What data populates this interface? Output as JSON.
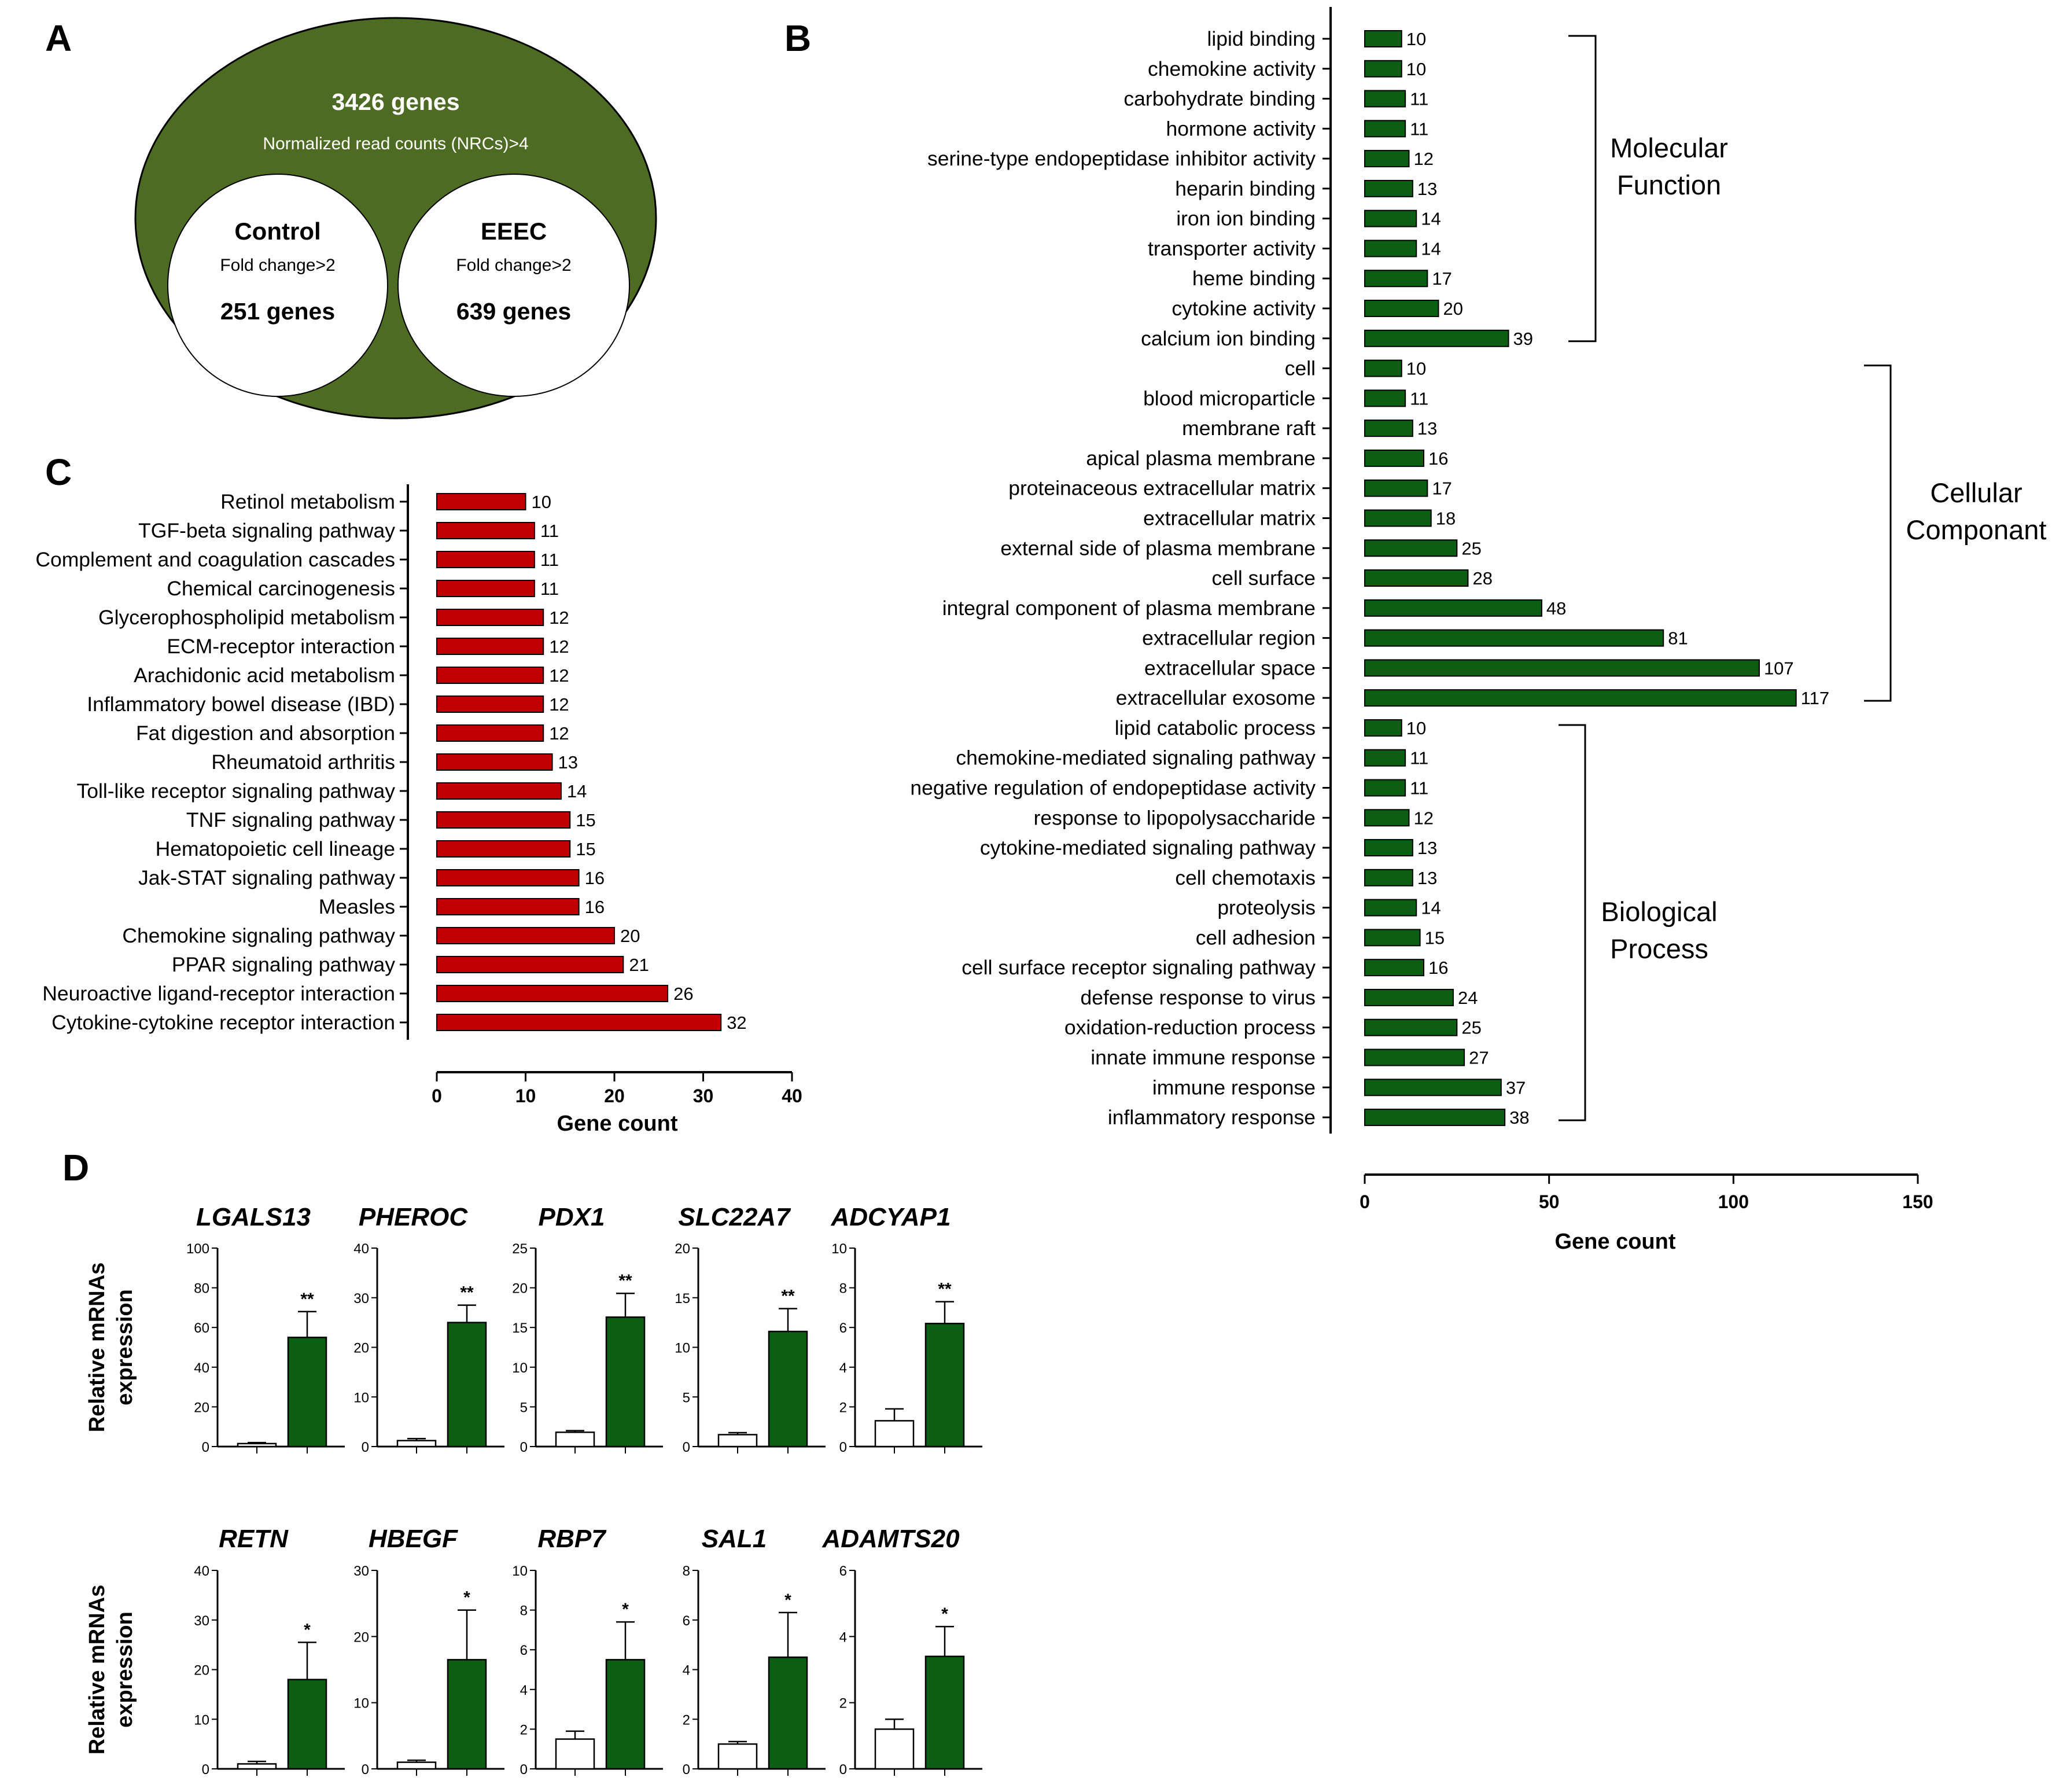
{
  "panel_letters": {
    "a": "A",
    "b": "B",
    "c": "C",
    "d": "D"
  },
  "venn": {
    "outer_title": "3426 genes",
    "outer_subtitle": "Normalized read counts (NRCs)>4",
    "left": {
      "title": "Control",
      "subtitle": "Fold change>2",
      "count": "251 genes"
    },
    "right": {
      "title": "EEEC",
      "subtitle": "Fold change>2",
      "count": "639 genes"
    },
    "outer_color": "#4d6b22"
  },
  "chart_data": [
    {
      "panel": "B",
      "type": "bar",
      "orientation": "horizontal",
      "xlabel": "Gene count",
      "xlim": [
        0,
        150
      ],
      "xticks": [
        0,
        50,
        100,
        150
      ],
      "color": "#0b5e12",
      "groups": [
        {
          "name": "Molecular Function",
          "label_lines": [
            "Molecular",
            "Function"
          ],
          "categories": [
            "lipid binding",
            "chemokine activity",
            "carbohydrate binding",
            "hormone activity",
            "serine-type endopeptidase inhibitor activity",
            "heparin binding",
            "iron ion binding",
            "transporter activity",
            "heme binding",
            "cytokine activity",
            "calcium ion binding"
          ],
          "values": [
            10,
            10,
            11,
            11,
            12,
            13,
            14,
            14,
            17,
            20,
            39
          ]
        },
        {
          "name": "Cellular Componant",
          "label_lines": [
            "Cellular",
            "Componant"
          ],
          "categories": [
            "cell",
            "blood microparticle",
            "membrane raft",
            "apical plasma membrane",
            "proteinaceous extracellular matrix",
            "extracellular matrix",
            "external side of plasma membrane",
            "cell surface",
            "integral component of plasma membrane",
            "extracellular region",
            "extracellular space",
            "extracellular exosome"
          ],
          "values": [
            10,
            11,
            13,
            16,
            17,
            18,
            25,
            28,
            48,
            81,
            107,
            117
          ]
        },
        {
          "name": "Biological Process",
          "label_lines": [
            "Biological",
            "Process"
          ],
          "categories": [
            "lipid catabolic process",
            "chemokine-mediated signaling pathway",
            "negative regulation of endopeptidase activity",
            "response to lipopolysaccharide",
            "cytokine-mediated signaling pathway",
            "cell chemotaxis",
            "proteolysis",
            "cell adhesion",
            "cell surface receptor signaling pathway",
            "defense response to virus",
            "oxidation-reduction process",
            "innate immune response",
            "immune response",
            "inflammatory response"
          ],
          "values": [
            10,
            11,
            11,
            12,
            13,
            13,
            14,
            15,
            16,
            24,
            25,
            27,
            37,
            38
          ]
        }
      ]
    },
    {
      "panel": "C",
      "type": "bar",
      "orientation": "horizontal",
      "xlabel": "Gene count",
      "xlim": [
        0,
        40
      ],
      "xticks": [
        0,
        10,
        20,
        30,
        40
      ],
      "color": "#c00000",
      "categories": [
        "Retinol metabolism",
        "TGF-beta signaling pathway",
        "Complement and coagulation cascades",
        "Chemical carcinogenesis",
        "Glycerophospholipid metabolism",
        "ECM-receptor interaction",
        "Arachidonic acid metabolism",
        "Inflammatory bowel disease (IBD)",
        "Fat digestion and absorption",
        "Rheumatoid arthritis",
        "Toll-like receptor signaling pathway",
        "TNF signaling pathway",
        "Hematopoietic cell lineage",
        "Jak-STAT signaling pathway",
        "Measles",
        "Chemokine signaling pathway",
        "PPAR signaling pathway",
        "Neuroactive ligand-receptor interaction",
        "Cytokine-cytokine receptor interaction"
      ],
      "values": [
        10,
        11,
        11,
        11,
        12,
        12,
        12,
        12,
        12,
        13,
        14,
        15,
        15,
        16,
        16,
        20,
        21,
        26,
        32
      ]
    },
    {
      "panel": "D",
      "type": "bar",
      "ylabel": "Relative mRNAs expression",
      "groups_order": [
        "white",
        "green"
      ],
      "colors": {
        "white": "#ffffff",
        "green": "#0b5e12"
      },
      "rows": [
        [
          {
            "gene": "LGALS13",
            "ylim": [
              0,
              100
            ],
            "yticks": [
              0,
              20,
              40,
              60,
              80,
              100
            ],
            "values": [
              1.5,
              55
            ],
            "errors": [
              0.5,
              13
            ],
            "sig": "**"
          },
          {
            "gene": "PHEROC",
            "ylim": [
              0,
              40
            ],
            "yticks": [
              0,
              10,
              20,
              30,
              40
            ],
            "values": [
              1.2,
              25
            ],
            "errors": [
              0.4,
              3.5
            ],
            "sig": "**"
          },
          {
            "gene": "PDX1",
            "ylim": [
              0,
              25
            ],
            "yticks": [
              0,
              5,
              10,
              15,
              20,
              25
            ],
            "values": [
              1.8,
              16.3
            ],
            "errors": [
              0.2,
              3
            ],
            "sig": "**"
          },
          {
            "gene": "SLC22A7",
            "ylim": [
              0,
              20
            ],
            "yticks": [
              0,
              5,
              10,
              15,
              20
            ],
            "values": [
              1.2,
              11.6
            ],
            "errors": [
              0.2,
              2.3
            ],
            "sig": "**"
          },
          {
            "gene": "ADCYAP1",
            "ylim": [
              0,
              10
            ],
            "yticks": [
              0,
              2,
              4,
              6,
              8,
              10
            ],
            "values": [
              1.3,
              6.2
            ],
            "errors": [
              0.6,
              1.1
            ],
            "sig": "**"
          }
        ],
        [
          {
            "gene": "RETN",
            "ylim": [
              0,
              40
            ],
            "yticks": [
              0,
              10,
              20,
              30,
              40
            ],
            "values": [
              1.0,
              18
            ],
            "errors": [
              0.5,
              7.5
            ],
            "sig": "*"
          },
          {
            "gene": "HBEGF",
            "ylim": [
              0,
              30
            ],
            "yticks": [
              0,
              10,
              20,
              30
            ],
            "values": [
              1.0,
              16.5
            ],
            "errors": [
              0.3,
              7.5
            ],
            "sig": "*"
          },
          {
            "gene": "RBP7",
            "ylim": [
              0,
              10
            ],
            "yticks": [
              0,
              2,
              4,
              6,
              8,
              10
            ],
            "values": [
              1.5,
              5.5
            ],
            "errors": [
              0.4,
              1.9
            ],
            "sig": "*"
          },
          {
            "gene": "SAL1",
            "ylim": [
              0,
              8
            ],
            "yticks": [
              0,
              2,
              4,
              6,
              8
            ],
            "values": [
              1.0,
              4.5
            ],
            "errors": [
              0.1,
              1.8
            ],
            "sig": "*"
          },
          {
            "gene": "ADAMTS20",
            "ylim": [
              0,
              6
            ],
            "yticks": [
              0,
              2,
              4,
              6
            ],
            "values": [
              1.2,
              3.4
            ],
            "errors": [
              0.3,
              0.9
            ],
            "sig": "*"
          }
        ]
      ]
    }
  ]
}
